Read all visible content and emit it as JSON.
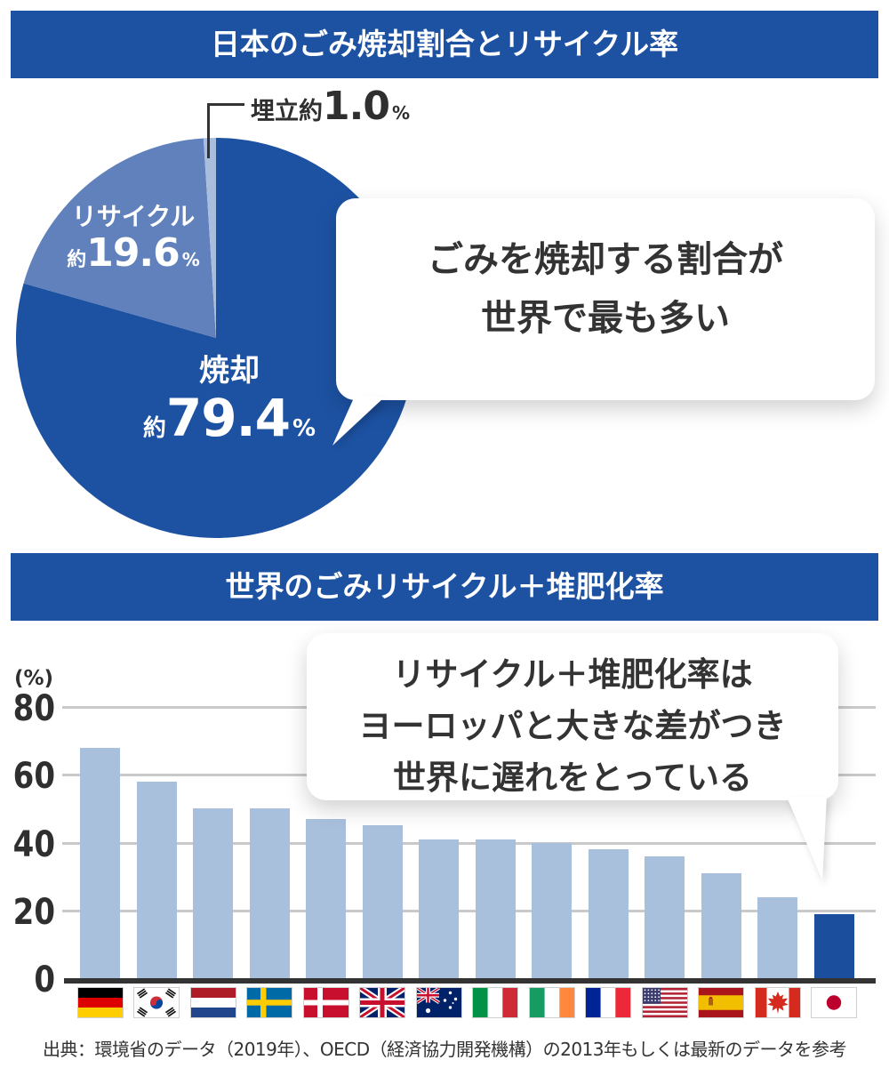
{
  "page": {
    "background": "#ffffff",
    "accent_color": "#1d52a3",
    "text_color": "#333333",
    "footer": "出典：環境省のデータ（2019年）、OECD（経済協力開発機構）の2013年もしくは最新のデータを参考"
  },
  "section1": {
    "banner": "日本のごみ焼却割合とリサイクル率",
    "bubble": {
      "line1": "ごみを焼却する割合が",
      "line2": "世界で最も多い"
    },
    "pie": {
      "slice_colors": [
        "#1d52a3",
        "#6081bb",
        "#a9bedd"
      ],
      "labels": {
        "incineration": {
          "name": "焼却",
          "prefix": "約",
          "value": "79.4",
          "unit": "%"
        },
        "recycle": {
          "name": "リサイクル",
          "prefix": "約",
          "value": "19.6",
          "unit": "%"
        },
        "landfill": {
          "prefix": "埋立約",
          "value": "1.0",
          "unit": "%"
        }
      }
    }
  },
  "section2": {
    "banner": "世界のごみリサイクル＋堆肥化率",
    "bubble": {
      "line1": "リサイクル＋堆肥化率は",
      "line2": "ヨーロッパと大きな差がつき",
      "line3": "世界に遅れをとっている"
    },
    "axis_unit_label": "(%)",
    "bar_colors": {
      "default": "#a9c0dd",
      "highlight": "#1b4f9e"
    }
  },
  "chart_data": [
    {
      "type": "pie",
      "title": "日本のごみ焼却割合とリサイクル率",
      "slices": [
        {
          "label": "焼却",
          "value": 79.4
        },
        {
          "label": "リサイクル",
          "value": 19.6
        },
        {
          "label": "埋立",
          "value": 1.0
        }
      ],
      "annotation": "ごみを焼却する割合が世界で最も多い"
    },
    {
      "type": "bar",
      "title": "世界のごみリサイクル＋堆肥化率",
      "ylabel": "(%)",
      "ylim": [
        0,
        80
      ],
      "yticks": [
        80,
        60,
        40,
        20,
        0
      ],
      "grid": true,
      "categories": [
        "Germany",
        "South Korea",
        "Netherlands",
        "Sweden",
        "Denmark",
        "United Kingdom",
        "Australia",
        "Italy",
        "Ireland",
        "France",
        "United States",
        "Spain",
        "Canada",
        "Japan"
      ],
      "values": [
        68,
        58,
        50,
        50,
        47,
        45,
        41,
        41,
        40,
        38,
        36,
        31,
        24,
        19
      ],
      "flag_icons": [
        "flag-germany-icon",
        "flag-south-korea-icon",
        "flag-netherlands-icon",
        "flag-sweden-icon",
        "flag-denmark-icon",
        "flag-united-kingdom-icon",
        "flag-australia-icon",
        "flag-italy-icon",
        "flag-ireland-icon",
        "flag-france-icon",
        "flag-united-states-icon",
        "flag-spain-icon",
        "flag-canada-icon",
        "flag-japan-icon"
      ],
      "highlight_index": 13,
      "annotation": "リサイクル＋堆肥化率はヨーロッパと大きな差がつき世界に遅れをとっている"
    }
  ]
}
